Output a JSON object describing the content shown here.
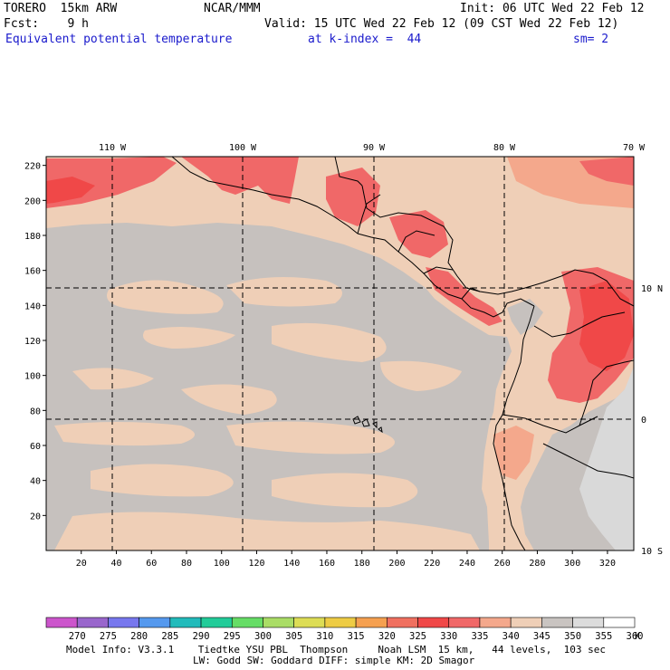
{
  "header": {
    "model": "TORERO  15km ARW",
    "org": "NCAR/MMM",
    "init": "Init: 06 UTC Wed 22 Feb 12",
    "fcst": "Fcst:    9 h",
    "valid": "Valid: 15 UTC Wed 22 Feb 12 (09 CST Wed 22 Feb 12)",
    "field": "Equivalent potential temperature",
    "level": "at k-index =  44",
    "smooth": "sm= 2"
  },
  "map": {
    "top_lon_labels": [
      "110 W",
      "100 W",
      "90 W",
      "80 W",
      "70 W"
    ],
    "right_lat_labels": [
      "10 N",
      "0",
      "10 S"
    ],
    "x_ticks": [
      "20",
      "40",
      "60",
      "80",
      "100",
      "120",
      "140",
      "160",
      "180",
      "200",
      "220",
      "240",
      "260",
      "280",
      "300",
      "320"
    ],
    "y_ticks": [
      "220",
      "200",
      "180",
      "160",
      "140",
      "120",
      "100",
      "80",
      "60",
      "40",
      "20"
    ],
    "background_color": "#efcfb7",
    "dominant_low_color": "#c6c1be"
  },
  "colorbar": {
    "levels": [
      "270",
      "275",
      "280",
      "285",
      "290",
      "295",
      "300",
      "305",
      "310",
      "315",
      "320",
      "325",
      "330",
      "335",
      "340",
      "345",
      "350",
      "355",
      "360"
    ],
    "colors": [
      "#cc55cc",
      "#9966cc",
      "#7777ee",
      "#5599ee",
      "#22bbbb",
      "#22cc99",
      "#66dd66",
      "#aadd66",
      "#dddd55",
      "#eecc44",
      "#f5a050",
      "#f07060",
      "#f04848",
      "#f06868",
      "#f4a88c",
      "#efcfb7",
      "#c9c4c1",
      "#dcdcdc",
      "#ffffff"
    ],
    "unit": "K"
  },
  "footer": {
    "line1": "Model Info: V3.3.1    Tiedtke YSU PBL  Thompson     Noah LSM  15 km,   44 levels,  103 sec",
    "line2": "LW: Godd SW: Goddard DIFF: simple KM: 2D Smagor"
  }
}
